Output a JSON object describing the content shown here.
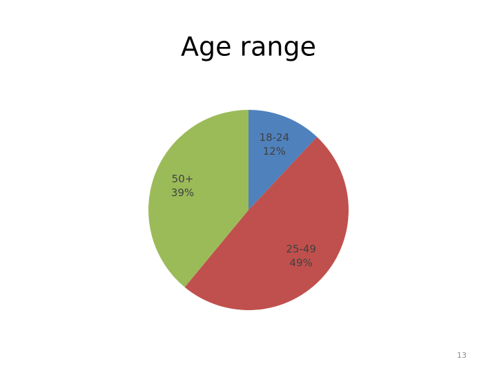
{
  "chart_data": {
    "type": "pie",
    "title": "Age range",
    "categories": [
      "18-24",
      "25-49",
      "50+"
    ],
    "values": [
      12,
      49,
      39
    ],
    "value_labels": [
      "12%",
      "49%",
      "39%"
    ],
    "colors": [
      "#4f81bd",
      "#c0504d",
      "#9bbb59"
    ]
  },
  "slide": {
    "page_number": "13"
  }
}
